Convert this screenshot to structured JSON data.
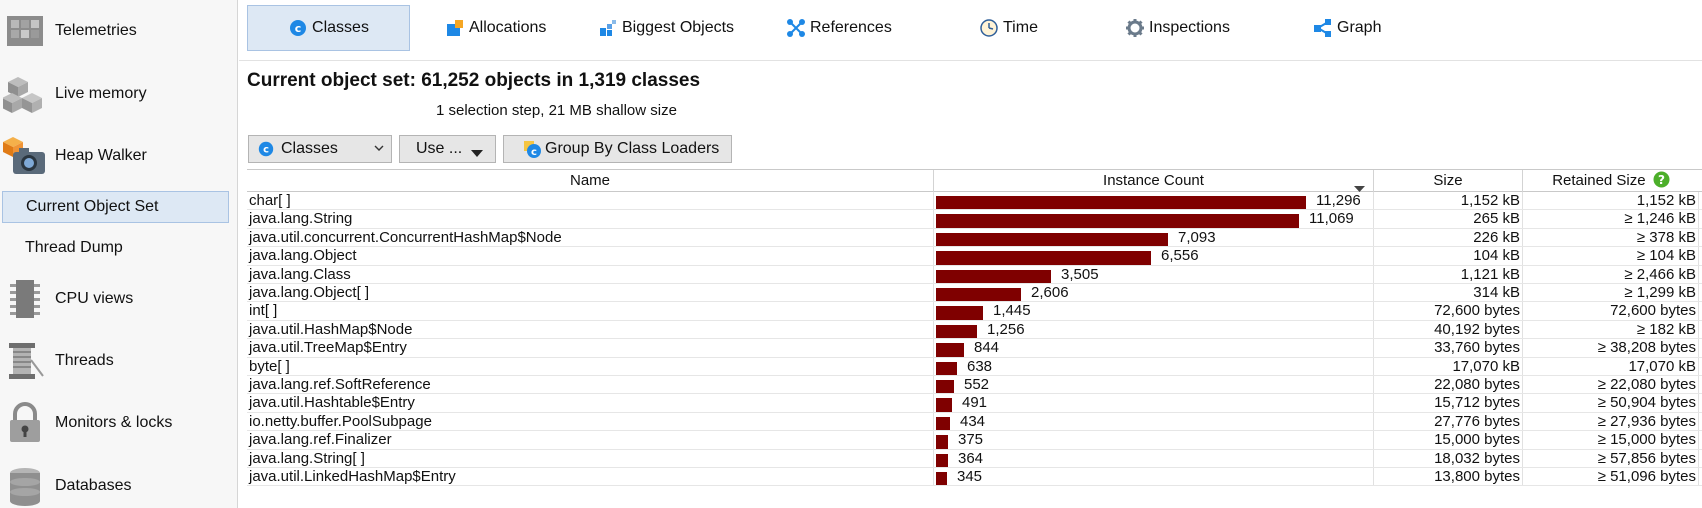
{
  "sidebar": {
    "items": [
      {
        "label": "Telemetries",
        "icon": "telemetries-icon"
      },
      {
        "label": "Live memory",
        "icon": "live-memory-icon"
      },
      {
        "label": "Heap Walker",
        "icon": "heap-walker-icon"
      },
      {
        "label": "CPU views",
        "icon": "cpu-views-icon"
      },
      {
        "label": "Threads",
        "icon": "threads-icon"
      },
      {
        "label": "Monitors & locks",
        "icon": "monitors-locks-icon"
      },
      {
        "label": "Databases",
        "icon": "databases-icon"
      }
    ],
    "subitems": [
      {
        "label": "Current Object Set",
        "selected": true
      },
      {
        "label": "Thread Dump",
        "selected": false
      }
    ]
  },
  "tabs": [
    {
      "label": "Classes",
      "icon": "classes-icon",
      "selected": true
    },
    {
      "label": "Allocations",
      "icon": "allocations-icon"
    },
    {
      "label": "Biggest Objects",
      "icon": "biggest-objects-icon"
    },
    {
      "label": "References",
      "icon": "references-icon"
    },
    {
      "label": "Time",
      "icon": "time-icon"
    },
    {
      "label": "Inspections",
      "icon": "inspections-icon"
    },
    {
      "label": "Graph",
      "icon": "graph-icon"
    }
  ],
  "header": {
    "title": "Current object set:  61,252 objects in 1,319 classes",
    "subtitle": "1 selection step, 21 MB shallow size"
  },
  "toolbar": {
    "view_select": "Classes",
    "use_button": "Use ...",
    "group_button": "Group By Class Loaders"
  },
  "table": {
    "columns": {
      "name": "Name",
      "count": "Instance Count",
      "size": "Size",
      "retained": "Retained Size"
    },
    "max_count": 11296,
    "rows": [
      {
        "name": "char[ ]",
        "count": 11296,
        "count_label": "11,296",
        "size": "1,152 kB",
        "retained": "1,152 kB"
      },
      {
        "name": "java.lang.String",
        "count": 11069,
        "count_label": "11,069",
        "size": "265 kB",
        "retained": "≥ 1,246 kB"
      },
      {
        "name": "java.util.concurrent.ConcurrentHashMap$Node",
        "count": 7093,
        "count_label": "7,093",
        "size": "226 kB",
        "retained": "≥ 378 kB"
      },
      {
        "name": "java.lang.Object",
        "count": 6556,
        "count_label": "6,556",
        "size": "104 kB",
        "retained": "≥ 104 kB"
      },
      {
        "name": "java.lang.Class",
        "count": 3505,
        "count_label": "3,505",
        "size": "1,121 kB",
        "retained": "≥ 2,466 kB"
      },
      {
        "name": "java.lang.Object[ ]",
        "count": 2606,
        "count_label": "2,606",
        "size": "314 kB",
        "retained": "≥ 1,299 kB"
      },
      {
        "name": "int[ ]",
        "count": 1445,
        "count_label": "1,445",
        "size": "72,600 bytes",
        "retained": "72,600 bytes"
      },
      {
        "name": "java.util.HashMap$Node",
        "count": 1256,
        "count_label": "1,256",
        "size": "40,192 bytes",
        "retained": "≥ 182 kB"
      },
      {
        "name": "java.util.TreeMap$Entry",
        "count": 844,
        "count_label": "844",
        "size": "33,760 bytes",
        "retained": "≥ 38,208 bytes"
      },
      {
        "name": "byte[ ]",
        "count": 638,
        "count_label": "638",
        "size": "17,070 kB",
        "retained": "17,070 kB"
      },
      {
        "name": "java.lang.ref.SoftReference",
        "count": 552,
        "count_label": "552",
        "size": "22,080 bytes",
        "retained": "≥ 22,080 bytes"
      },
      {
        "name": "java.util.Hashtable$Entry",
        "count": 491,
        "count_label": "491",
        "size": "15,712 bytes",
        "retained": "≥ 50,904 bytes"
      },
      {
        "name": "io.netty.buffer.PoolSubpage",
        "count": 434,
        "count_label": "434",
        "size": "27,776 bytes",
        "retained": "≥ 27,936 bytes"
      },
      {
        "name": "java.lang.ref.Finalizer",
        "count": 375,
        "count_label": "375",
        "size": "15,000 bytes",
        "retained": "≥ 15,000 bytes"
      },
      {
        "name": "java.lang.String[ ]",
        "count": 364,
        "count_label": "364",
        "size": "18,032 bytes",
        "retained": "≥ 57,856 bytes"
      },
      {
        "name": "java.util.LinkedHashMap$Entry",
        "count": 345,
        "count_label": "345",
        "size": "13,800 bytes",
        "retained": "≥ 51,096 bytes"
      }
    ]
  },
  "colors": {
    "bar": "#7f0000",
    "selected_bg": "#dde8f4",
    "selected_border": "#a9c3e3",
    "help_badge": "#4caf2a"
  }
}
